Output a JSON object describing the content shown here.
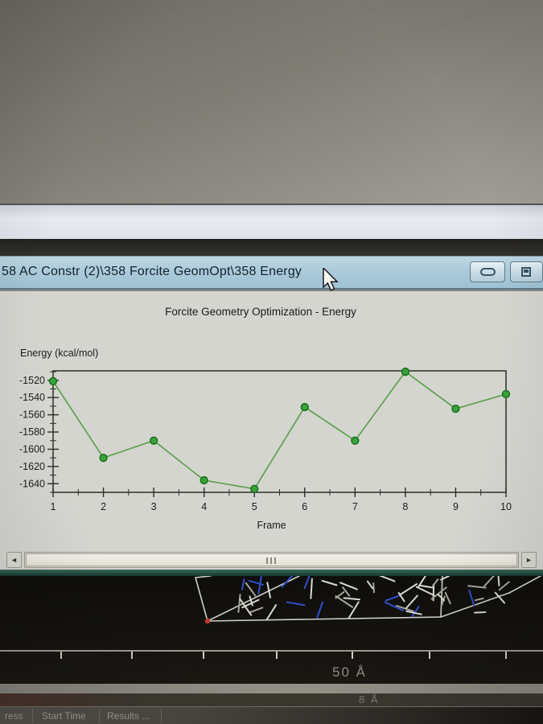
{
  "window": {
    "title": "58 AC Constr (2)\\358 Forcite GeomOpt\\358 Energy",
    "buttons": {
      "minimize": "minimize",
      "restore": "restore"
    }
  },
  "chart_data": {
    "type": "line",
    "title": "Forcite Geometry Optimization - Energy",
    "ylabel_caption": "Energy (kcal/mol)",
    "xlabel": "Frame",
    "x": [
      1,
      2,
      3,
      4,
      5,
      6,
      7,
      8,
      9,
      10
    ],
    "values": [
      -1521,
      -1610,
      -1590,
      -1636,
      -1646,
      -1551,
      -1590,
      -1510,
      -1553,
      -1536
    ],
    "y_ticks": [
      -1520,
      -1540,
      -1560,
      -1580,
      -1600,
      -1620,
      -1640
    ],
    "ylim": [
      -1650,
      -1509
    ],
    "xlim": [
      1,
      10
    ],
    "grid": false,
    "legend": "none",
    "line_color": "#5fa050",
    "marker_color": "#3aa23a",
    "marker_edge": "#15701c",
    "axis_color": "#2e2e29"
  },
  "scrollbar": {
    "left_arrow": "◄",
    "right_arrow": "►"
  },
  "viewer": {
    "scale_label": "50 Å",
    "secondary_scale_label": "8 Å"
  },
  "table": {
    "headers": [
      "ress",
      "Start Time",
      "Results ..."
    ]
  },
  "colors": {
    "titlebar": "#a9c9d9",
    "panel": "#d4d5cf",
    "viewer_bg": "#12100c",
    "accent_green": "#3aa23a"
  }
}
